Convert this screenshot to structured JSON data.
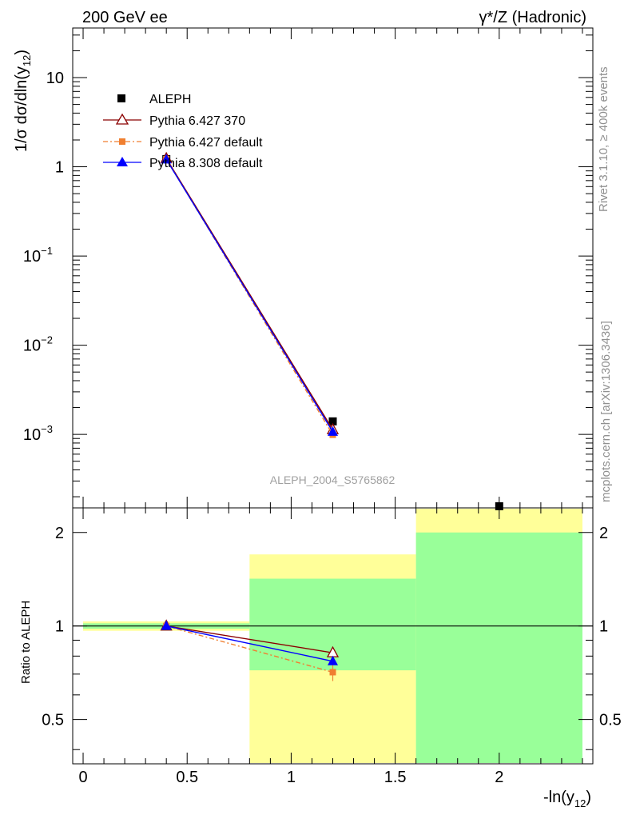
{
  "header": {
    "left": "200 GeV ee",
    "right": "γ*/Z (Hadronic)"
  },
  "side": {
    "rivet": "Rivet 3.1.10, ≥ 400k events",
    "mcplots": "mcplots.cern.ch [arXiv:1306.3436]"
  },
  "colors": {
    "aleph": "#000000",
    "py6_370": "#8b0000",
    "py6_default": "#f07f30",
    "py8_default": "#0000ff",
    "band_inner": "#99ff99",
    "band_outer": "#ffff99"
  },
  "chart_data": [
    {
      "type": "line",
      "title": "ALEPH_2004_S5765862",
      "xlabel": "-ln(y12)",
      "ylabel": "1/σ dσ/dln(y12)",
      "yscale": "log",
      "xlim": [
        -0.05,
        2.45
      ],
      "ylim": [
        0.00015,
        36
      ],
      "yticks": [
        {
          "v": 10,
          "label": "10"
        },
        {
          "v": 1,
          "label": "1"
        },
        {
          "v": 0.1,
          "label": "10",
          "exp": "−1"
        },
        {
          "v": 0.01,
          "label": "10",
          "exp": "−2"
        },
        {
          "v": 0.001,
          "label": "10",
          "exp": "−3"
        }
      ],
      "legend": [
        {
          "name": "ALEPH",
          "marker": "square"
        },
        {
          "name": "Pythia 6.427 370",
          "marker": "open-triangle"
        },
        {
          "name": "Pythia 6.427 default",
          "marker": "small-square"
        },
        {
          "name": "Pythia 8.308 default",
          "marker": "triangle"
        }
      ],
      "series": [
        {
          "name": "ALEPH",
          "x": [
            0.4,
            1.2,
            2.0
          ],
          "y": [
            1.22,
            0.0014,
            0.00015
          ]
        },
        {
          "name": "Pythia 6.427 370",
          "x": [
            0.4,
            1.2
          ],
          "y": [
            1.24,
            0.00113
          ]
        },
        {
          "name": "Pythia 6.427 default",
          "x": [
            0.4,
            1.2
          ],
          "y": [
            1.22,
            0.00099
          ]
        },
        {
          "name": "Pythia 8.308 default",
          "x": [
            0.4,
            1.2
          ],
          "y": [
            1.21,
            0.00107
          ]
        }
      ]
    },
    {
      "type": "line",
      "xlabel": "-ln(y12)",
      "ylabel": "Ratio to ALEPH",
      "yscale": "log",
      "xlim": [
        -0.05,
        2.45
      ],
      "ylim": [
        0.36,
        2.4
      ],
      "xticks": [
        0,
        0.5,
        1,
        1.5,
        2
      ],
      "xtick_labels": [
        "0",
        "0.5",
        "1",
        "1.5",
        "2"
      ],
      "yticks": [
        2,
        1,
        0.5
      ],
      "ytick_labels": [
        "2",
        "1",
        "0.5"
      ],
      "bins": [
        {
          "x0": 0.0,
          "x1": 0.8,
          "inner": [
            0.98,
            1.02
          ],
          "outer": [
            0.965,
            1.035
          ]
        },
        {
          "x0": 0.8,
          "x1": 1.6,
          "inner": [
            0.72,
            1.42
          ],
          "outer": [
            0.36,
            1.7
          ]
        },
        {
          "x0": 1.6,
          "x1": 2.4,
          "inner": [
            0.36,
            2.0
          ],
          "outer": [
            0.36,
            2.4
          ]
        }
      ],
      "series": [
        {
          "name": "Pythia 6.427 370",
          "x": [
            0.4,
            1.2
          ],
          "y": [
            1.0,
            0.82
          ],
          "err": [
            0.01,
            0.035
          ]
        },
        {
          "name": "Pythia 6.427 default",
          "x": [
            0.4,
            1.2
          ],
          "y": [
            1.0,
            0.71
          ],
          "err": [
            0.01,
            0.045
          ]
        },
        {
          "name": "Pythia 8.308 default",
          "x": [
            0.4,
            1.2
          ],
          "y": [
            1.0,
            0.77
          ],
          "err": [
            0.01,
            0.02
          ]
        }
      ]
    }
  ]
}
